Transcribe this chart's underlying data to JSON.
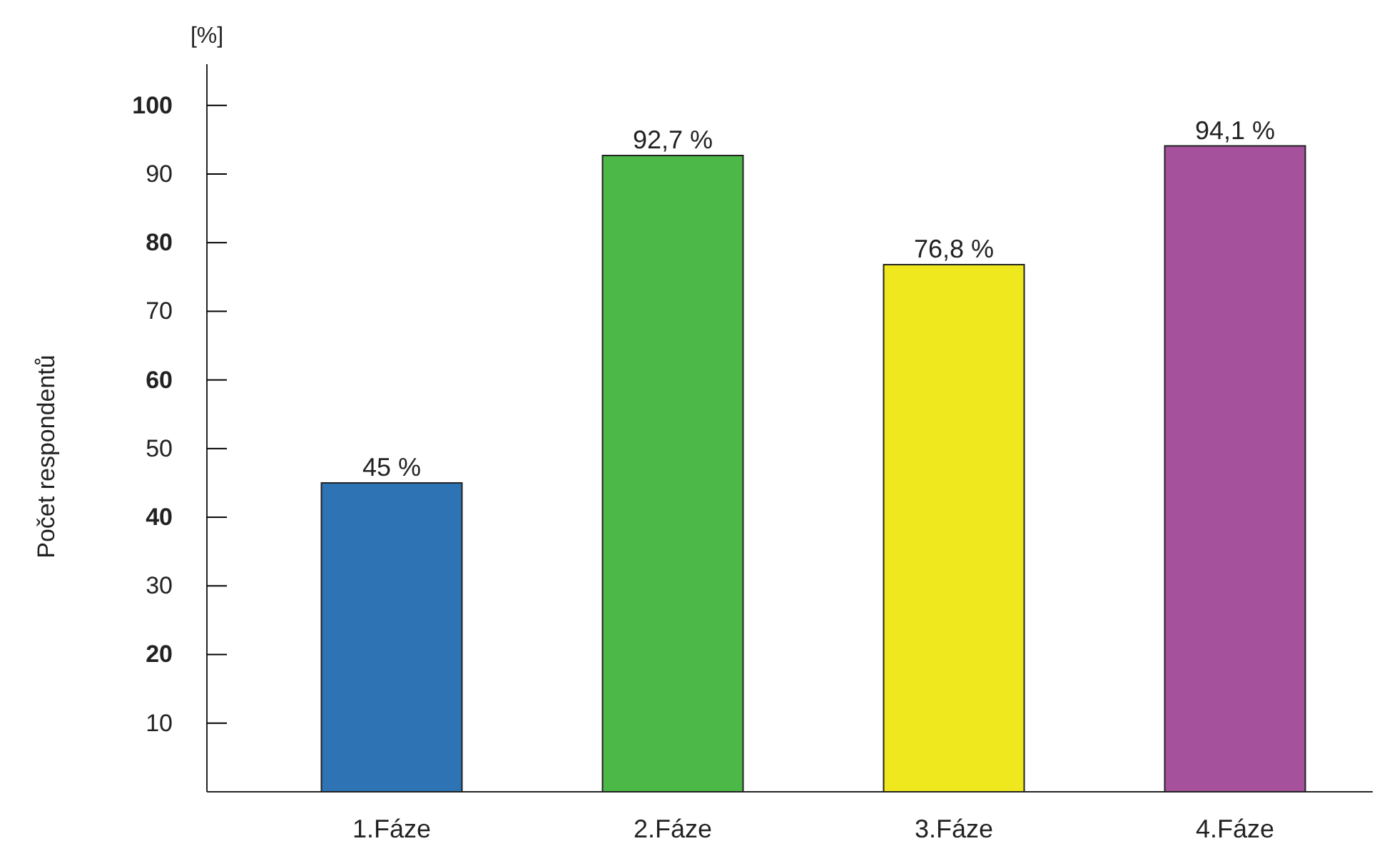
{
  "chart_data": {
    "type": "bar",
    "ylabel": "Počet respondentů",
    "annotations": [
      "[%]"
    ],
    "categories": [
      "1.Fáze",
      "2.Fáze",
      "3.Fáze",
      "4.Fáze"
    ],
    "values": [
      45,
      92.7,
      76.8,
      94.1
    ],
    "colors": [
      "#2e74b5",
      "#4cb848",
      "#f0e81e",
      "#a5519b"
    ],
    "value_labels": [
      "45 %",
      "92,7 %",
      "76,8 %",
      "94,1 %"
    ],
    "ylim": [
      0,
      106
    ],
    "yticks": [
      10,
      20,
      30,
      40,
      50,
      60,
      70,
      80,
      90,
      100
    ],
    "grid": false
  }
}
